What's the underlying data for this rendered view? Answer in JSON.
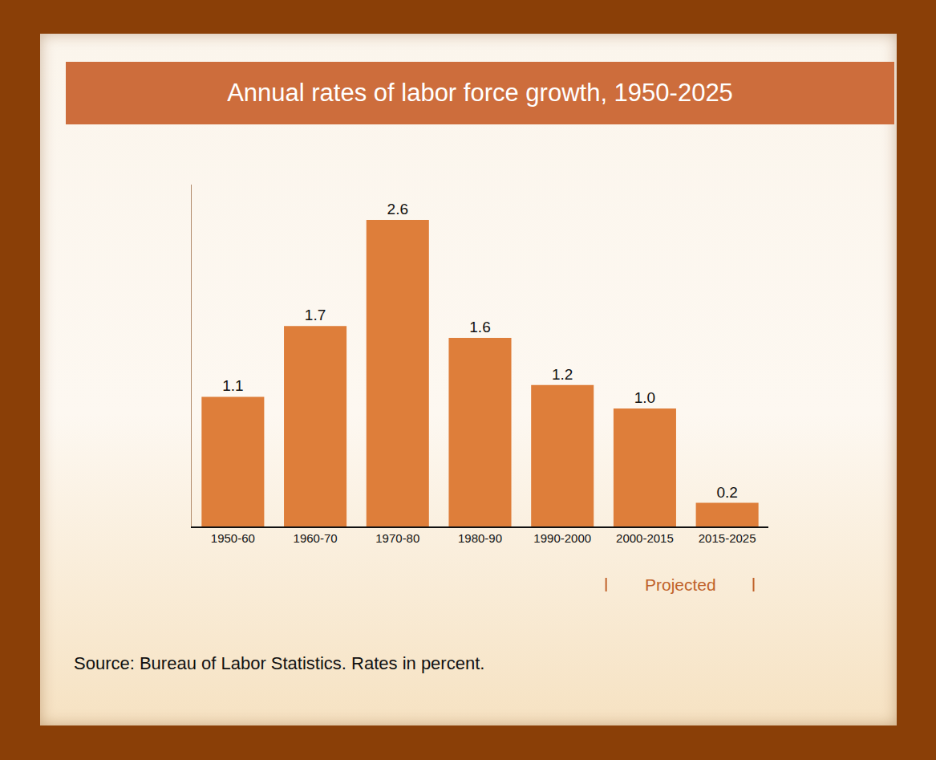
{
  "chart_data": {
    "type": "bar",
    "title": "Annual rates of labor force growth, 1950-2025",
    "categories": [
      "1950-60",
      "1960-70",
      "1970-80",
      "1980-90",
      "1990-2000",
      "2000-2015",
      "2015-2025"
    ],
    "values": [
      1.1,
      1.7,
      2.6,
      1.6,
      1.2,
      1.0,
      0.2
    ],
    "value_labels": [
      "1.1",
      "1.7",
      "2.6",
      "1.6",
      "1.2",
      "1.0",
      "0.2"
    ],
    "color": "#de7e3a",
    "ylim": [
      0,
      2.9
    ],
    "grid": false,
    "data_labels": true,
    "tick_labels": "x",
    "annotations": [
      {
        "text": "Projected"
      },
      {
        "text": "Source: Bureau of Labor Statistics. Rates in percent."
      }
    ]
  }
}
